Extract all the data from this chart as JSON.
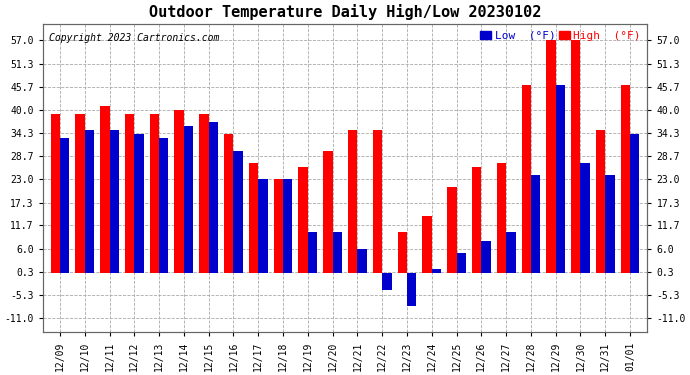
{
  "title": "Outdoor Temperature Daily High/Low 20230102",
  "copyright": "Copyright 2023 Cartronics.com",
  "legend_low": "Low",
  "legend_high": "High",
  "legend_unit": "(°F)",
  "dates": [
    "12/09",
    "12/10",
    "12/11",
    "12/12",
    "12/13",
    "12/14",
    "12/15",
    "12/16",
    "12/17",
    "12/18",
    "12/19",
    "12/20",
    "12/21",
    "12/22",
    "12/23",
    "12/24",
    "12/25",
    "12/26",
    "12/27",
    "12/28",
    "12/29",
    "12/30",
    "12/31",
    "01/01"
  ],
  "high": [
    39.0,
    39.0,
    41.0,
    39.0,
    39.0,
    40.0,
    39.0,
    34.0,
    27.0,
    23.0,
    26.0,
    30.0,
    35.0,
    35.0,
    10.0,
    14.0,
    21.0,
    26.0,
    27.0,
    46.0,
    57.0,
    57.0,
    35.0,
    46.0
  ],
  "low": [
    33.0,
    35.0,
    35.0,
    34.0,
    33.0,
    36.0,
    37.0,
    30.0,
    23.0,
    23.0,
    10.0,
    10.0,
    6.0,
    -4.0,
    -8.0,
    1.0,
    5.0,
    8.0,
    10.0,
    24.0,
    46.0,
    27.0,
    24.0,
    34.0
  ],
  "yticks": [
    -11.0,
    -5.3,
    0.3,
    6.0,
    11.7,
    17.3,
    23.0,
    28.7,
    34.3,
    40.0,
    45.7,
    51.3,
    57.0
  ],
  "ylim": [
    -14.5,
    61
  ],
  "bar_width": 0.38,
  "color_high": "#ff0000",
  "color_low": "#0000cc",
  "background_color": "#ffffff",
  "grid_color": "#aaaaaa",
  "title_fontsize": 11,
  "tick_fontsize": 7,
  "copyright_fontsize": 7,
  "legend_fontsize": 8
}
